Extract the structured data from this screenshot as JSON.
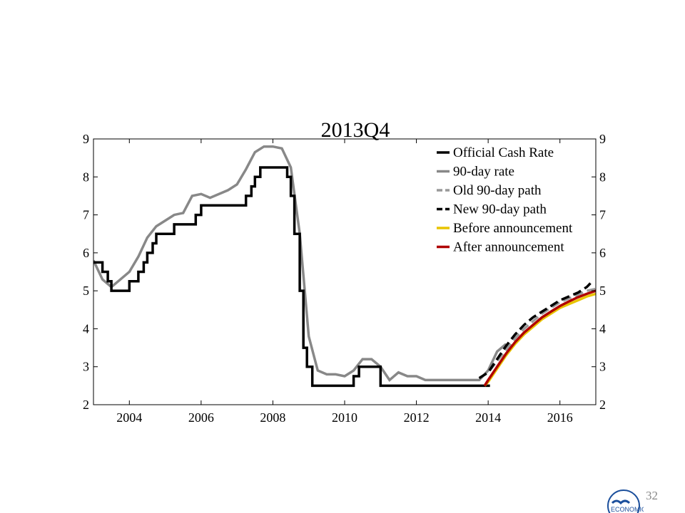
{
  "chart_data": {
    "type": "line",
    "title": "2013Q4",
    "xlabel": "",
    "ylabel": "",
    "xlim": [
      2003.0,
      2017.0
    ],
    "ylim": [
      2,
      9
    ],
    "x_ticks": [
      2004,
      2006,
      2008,
      2010,
      2012,
      2014,
      2016
    ],
    "y_ticks": [
      2,
      3,
      4,
      5,
      6,
      7,
      8,
      9
    ],
    "legend_position": "top-right",
    "grid": false,
    "series": [
      {
        "name": "Official Cash Rate",
        "color": "#000000",
        "style": "step",
        "x": [
          2003.0,
          2003.25,
          2003.4,
          2003.5,
          2003.75,
          2004.0,
          2004.25,
          2004.4,
          2004.5,
          2004.65,
          2004.75,
          2005.0,
          2005.25,
          2005.5,
          2005.75,
          2005.85,
          2006.0,
          2006.5,
          2007.0,
          2007.25,
          2007.4,
          2007.5,
          2007.65,
          2007.75,
          2008.0,
          2008.25,
          2008.4,
          2008.5,
          2008.6,
          2008.75,
          2008.85,
          2008.95,
          2009.0,
          2009.1,
          2009.25,
          2009.5,
          2010.0,
          2010.25,
          2010.4,
          2010.5,
          2010.6,
          2011.0,
          2011.2,
          2011.5,
          2012.0,
          2012.5,
          2013.0,
          2013.5,
          2013.9,
          2014.05
        ],
        "values": [
          5.75,
          5.5,
          5.25,
          5.0,
          5.0,
          5.25,
          5.5,
          5.75,
          6.0,
          6.25,
          6.5,
          6.5,
          6.75,
          6.75,
          6.75,
          7.0,
          7.25,
          7.25,
          7.25,
          7.5,
          7.75,
          8.0,
          8.25,
          8.25,
          8.25,
          8.25,
          8.0,
          7.5,
          6.5,
          5.0,
          3.5,
          3.0,
          3.0,
          2.5,
          2.5,
          2.5,
          2.5,
          2.75,
          3.0,
          3.0,
          3.0,
          2.5,
          2.5,
          2.5,
          2.5,
          2.5,
          2.5,
          2.5,
          2.5,
          2.5
        ]
      },
      {
        "name": "90-day rate",
        "color": "#888888",
        "style": "solid",
        "x": [
          2003.0,
          2003.25,
          2003.5,
          2003.75,
          2004.0,
          2004.25,
          2004.5,
          2004.75,
          2005.0,
          2005.25,
          2005.5,
          2005.75,
          2006.0,
          2006.25,
          2006.5,
          2006.75,
          2007.0,
          2007.25,
          2007.5,
          2007.75,
          2008.0,
          2008.25,
          2008.5,
          2008.75,
          2009.0,
          2009.25,
          2009.5,
          2009.75,
          2010.0,
          2010.25,
          2010.5,
          2010.75,
          2011.0,
          2011.25,
          2011.5,
          2011.75,
          2012.0,
          2012.25,
          2012.5,
          2012.75,
          2013.0,
          2013.25,
          2013.5,
          2013.75,
          2014.0,
          2014.25,
          2014.5
        ],
        "values": [
          5.8,
          5.3,
          5.1,
          5.3,
          5.5,
          5.9,
          6.4,
          6.7,
          6.85,
          7.0,
          7.05,
          7.5,
          7.55,
          7.45,
          7.55,
          7.65,
          7.8,
          8.2,
          8.65,
          8.8,
          8.8,
          8.75,
          8.25,
          6.5,
          3.8,
          2.9,
          2.8,
          2.8,
          2.75,
          2.9,
          3.2,
          3.2,
          3.0,
          2.65,
          2.85,
          2.75,
          2.75,
          2.65,
          2.65,
          2.65,
          2.65,
          2.65,
          2.65,
          2.65,
          2.9,
          3.4,
          3.6
        ]
      },
      {
        "name": "Old 90-day path",
        "color": "#999999",
        "style": "dashed",
        "x": [
          2013.75,
          2014.0,
          2014.25,
          2014.5,
          2014.75,
          2015.0,
          2015.25,
          2015.5,
          2015.75,
          2016.0,
          2016.25,
          2016.5,
          2016.75,
          2017.0
        ],
        "values": [
          2.7,
          2.85,
          3.15,
          3.45,
          3.75,
          4.0,
          4.2,
          4.4,
          4.55,
          4.7,
          4.8,
          4.9,
          5.0,
          5.05
        ]
      },
      {
        "name": "New 90-day path",
        "color": "#000000",
        "style": "dashed",
        "x": [
          2013.75,
          2014.0,
          2014.25,
          2014.5,
          2014.75,
          2015.0,
          2015.25,
          2015.5,
          2015.75,
          2016.0,
          2016.25,
          2016.5,
          2016.75,
          2016.85
        ],
        "values": [
          2.7,
          2.85,
          3.2,
          3.55,
          3.85,
          4.1,
          4.3,
          4.45,
          4.6,
          4.75,
          4.85,
          4.95,
          5.1,
          5.2
        ]
      },
      {
        "name": "Before announcement",
        "color": "#e8c400",
        "style": "solid",
        "x": [
          2013.9,
          2014.0,
          2014.25,
          2014.5,
          2014.75,
          2015.0,
          2015.25,
          2015.5,
          2015.75,
          2016.0,
          2016.25,
          2016.5,
          2016.75,
          2017.0
        ],
        "values": [
          2.5,
          2.6,
          2.95,
          3.3,
          3.6,
          3.85,
          4.05,
          4.25,
          4.4,
          4.55,
          4.65,
          4.75,
          4.85,
          4.92
        ]
      },
      {
        "name": "After announcement",
        "color": "#b00000",
        "style": "solid",
        "x": [
          2013.9,
          2014.0,
          2014.25,
          2014.5,
          2014.75,
          2015.0,
          2015.25,
          2015.5,
          2015.75,
          2016.0,
          2016.25,
          2016.5,
          2016.75,
          2017.0
        ],
        "values": [
          2.5,
          2.65,
          3.0,
          3.35,
          3.65,
          3.9,
          4.1,
          4.3,
          4.45,
          4.6,
          4.72,
          4.83,
          4.92,
          5.0
        ]
      }
    ]
  },
  "footer": {
    "slide_number": "32"
  }
}
